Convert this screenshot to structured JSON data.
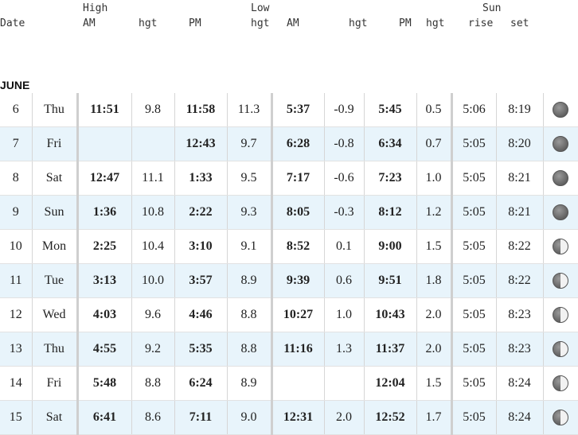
{
  "header": {
    "date": "Date",
    "high": "High",
    "am1": "AM",
    "hgt1": "hgt",
    "pm1": "PM",
    "hgt2": "hgt",
    "low": "Low",
    "hgt3": "hgt",
    "am2": "AM",
    "hgt4": "hgt",
    "pm2": "PM",
    "hgt5": "hgt",
    "sun": "Sun",
    "rise": "rise",
    "set": "set"
  },
  "month": "JUNE",
  "rows": [
    {
      "day": "6",
      "dow": "Thu",
      "h_am": "11:51",
      "h_am_hgt": "9.8",
      "h_pm": "11:58",
      "h_pm_hgt": "11.3",
      "l_am": "5:37",
      "l_am_hgt": "-0.9",
      "l_pm": "5:45",
      "l_pm_hgt": "0.5",
      "rise": "5:06",
      "set": "8:19",
      "moon": "dark-moon-icon"
    },
    {
      "day": "7",
      "dow": "Fri",
      "h_am": "",
      "h_am_hgt": "",
      "h_pm": "12:43",
      "h_pm_hgt": "9.7",
      "l_am": "6:28",
      "l_am_hgt": "-0.8",
      "l_pm": "6:34",
      "l_pm_hgt": "0.7",
      "rise": "5:05",
      "set": "8:20",
      "moon": "dark-moon-icon"
    },
    {
      "day": "8",
      "dow": "Sat",
      "h_am": "12:47",
      "h_am_hgt": "11.1",
      "h_pm": "1:33",
      "h_pm_hgt": "9.5",
      "l_am": "7:17",
      "l_am_hgt": "-0.6",
      "l_pm": "7:23",
      "l_pm_hgt": "1.0",
      "rise": "5:05",
      "set": "8:21",
      "moon": "dark-moon-icon"
    },
    {
      "day": "9",
      "dow": "Sun",
      "h_am": "1:36",
      "h_am_hgt": "10.8",
      "h_pm": "2:22",
      "h_pm_hgt": "9.3",
      "l_am": "8:05",
      "l_am_hgt": "-0.3",
      "l_pm": "8:12",
      "l_pm_hgt": "1.2",
      "rise": "5:05",
      "set": "8:21",
      "moon": "dark-moon-icon"
    },
    {
      "day": "10",
      "dow": "Mon",
      "h_am": "2:25",
      "h_am_hgt": "10.4",
      "h_pm": "3:10",
      "h_pm_hgt": "9.1",
      "l_am": "8:52",
      "l_am_hgt": "0.1",
      "l_pm": "9:00",
      "l_pm_hgt": "1.5",
      "rise": "5:05",
      "set": "8:22",
      "moon": "waxing-moon-icon"
    },
    {
      "day": "11",
      "dow": "Tue",
      "h_am": "3:13",
      "h_am_hgt": "10.0",
      "h_pm": "3:57",
      "h_pm_hgt": "8.9",
      "l_am": "9:39",
      "l_am_hgt": "0.6",
      "l_pm": "9:51",
      "l_pm_hgt": "1.8",
      "rise": "5:05",
      "set": "8:22",
      "moon": "waxing-moon-icon"
    },
    {
      "day": "12",
      "dow": "Wed",
      "h_am": "4:03",
      "h_am_hgt": "9.6",
      "h_pm": "4:46",
      "h_pm_hgt": "8.8",
      "l_am": "10:27",
      "l_am_hgt": "1.0",
      "l_pm": "10:43",
      "l_pm_hgt": "2.0",
      "rise": "5:05",
      "set": "8:23",
      "moon": "waxing-moon-icon"
    },
    {
      "day": "13",
      "dow": "Thu",
      "h_am": "4:55",
      "h_am_hgt": "9.2",
      "h_pm": "5:35",
      "h_pm_hgt": "8.8",
      "l_am": "11:16",
      "l_am_hgt": "1.3",
      "l_pm": "11:37",
      "l_pm_hgt": "2.0",
      "rise": "5:05",
      "set": "8:23",
      "moon": "waxing-moon-icon"
    },
    {
      "day": "14",
      "dow": "Fri",
      "h_am": "5:48",
      "h_am_hgt": "8.8",
      "h_pm": "6:24",
      "h_pm_hgt": "8.9",
      "l_am": "",
      "l_am_hgt": "",
      "l_pm": "12:04",
      "l_pm_hgt": "1.5",
      "rise": "5:05",
      "set": "8:24",
      "moon": "waxing-moon-icon"
    },
    {
      "day": "15",
      "dow": "Sat",
      "h_am": "6:41",
      "h_am_hgt": "8.6",
      "h_pm": "7:11",
      "h_pm_hgt": "9.0",
      "l_am": "12:31",
      "l_am_hgt": "2.0",
      "l_pm": "12:52",
      "l_pm_hgt": "1.7",
      "rise": "5:05",
      "set": "8:24",
      "moon": "waxing-moon-icon"
    }
  ]
}
